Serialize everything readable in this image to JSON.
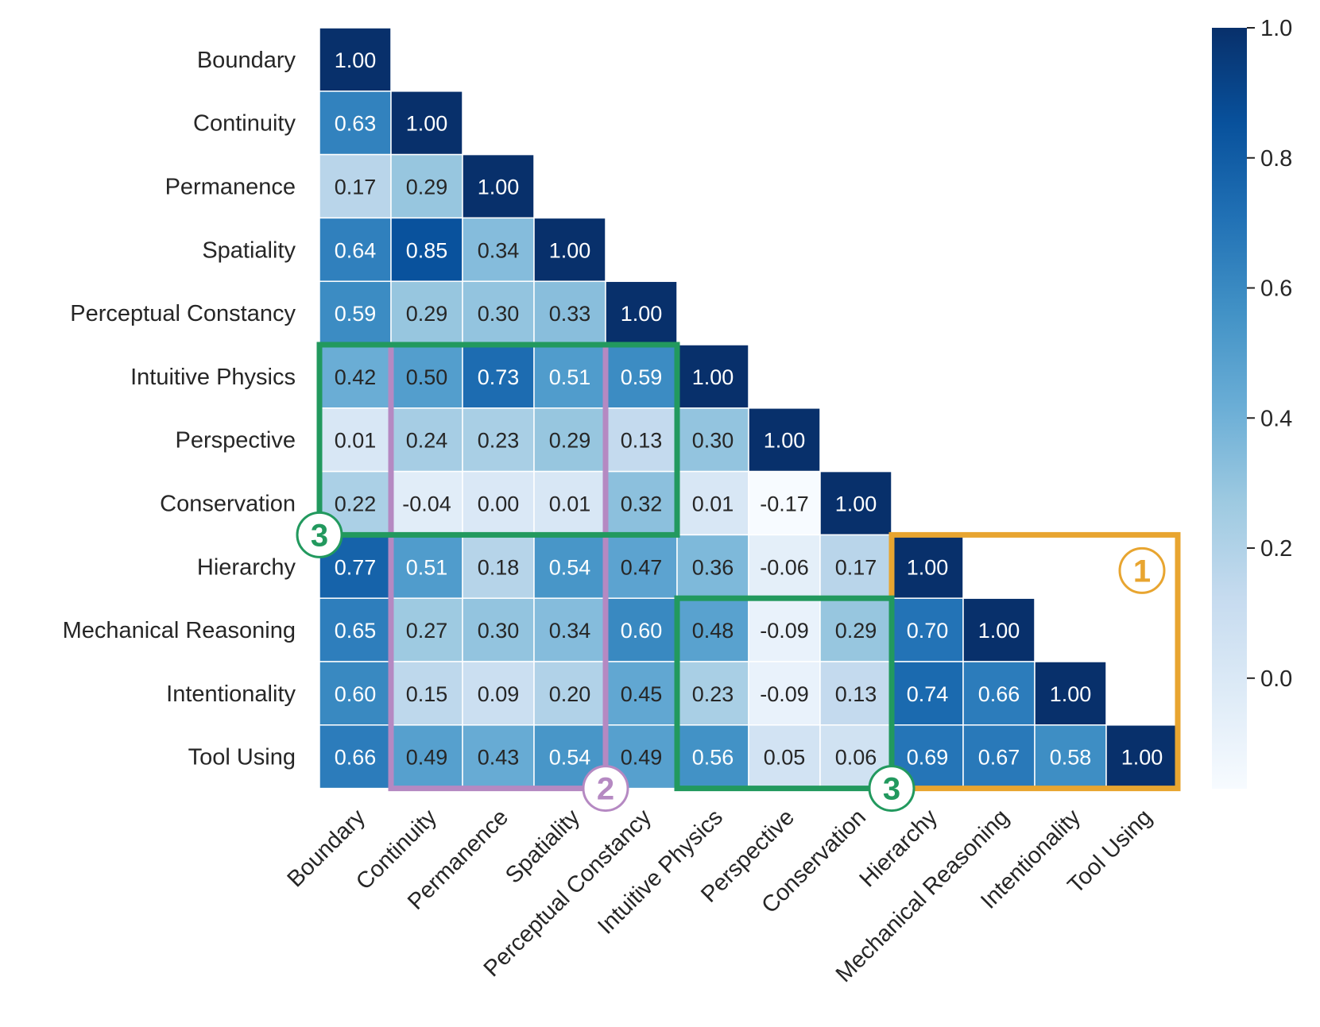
{
  "chart_data": {
    "type": "heatmap",
    "mask": "upper-triangle",
    "categories": [
      "Boundary",
      "Continuity",
      "Permanence",
      "Spatiality",
      "Perceptual Constancy",
      "Intuitive Physics",
      "Perspective",
      "Conservation",
      "Hierarchy",
      "Mechanical Reasoning",
      "Intentionality",
      "Tool Using"
    ],
    "values": [
      [
        1.0
      ],
      [
        0.63,
        1.0
      ],
      [
        0.17,
        0.29,
        1.0
      ],
      [
        0.64,
        0.85,
        0.34,
        1.0
      ],
      [
        0.59,
        0.29,
        0.3,
        0.33,
        1.0
      ],
      [
        0.42,
        0.5,
        0.73,
        0.51,
        0.59,
        1.0
      ],
      [
        0.01,
        0.24,
        0.23,
        0.29,
        0.13,
        0.3,
        1.0
      ],
      [
        0.22,
        -0.04,
        -0.0,
        0.01,
        0.32,
        0.01,
        -0.17,
        1.0
      ],
      [
        0.77,
        0.51,
        0.18,
        0.54,
        0.47,
        0.36,
        -0.06,
        0.17,
        1.0
      ],
      [
        0.65,
        0.27,
        0.3,
        0.34,
        0.6,
        0.48,
        -0.09,
        0.29,
        0.7,
        1.0
      ],
      [
        0.6,
        0.15,
        0.09,
        0.2,
        0.45,
        0.23,
        -0.09,
        0.13,
        0.74,
        0.66,
        1.0
      ],
      [
        0.66,
        0.49,
        0.43,
        0.54,
        0.49,
        0.56,
        0.05,
        0.06,
        0.69,
        0.67,
        0.58,
        1.0
      ]
    ],
    "colormap": "Blues",
    "colorbar": {
      "range": [
        -0.17,
        1.0
      ],
      "ticks": [
        0.0,
        0.2,
        0.4,
        0.6,
        0.8,
        1.0
      ],
      "tick_labels": [
        "0.0",
        "0.2",
        "0.4",
        "0.6",
        "0.8",
        "1.0"
      ]
    },
    "annotations": [
      {
        "label": "①",
        "color": "#e8a530",
        "rows": [
          8,
          11
        ],
        "cols": [
          8,
          11
        ],
        "label_at": "inside-top-right"
      },
      {
        "label": "②",
        "color": "#b589c2",
        "rows": [
          5,
          11
        ],
        "cols": [
          1,
          3
        ],
        "label_at": "bottom-right"
      },
      {
        "label": "③",
        "color": "#22995e",
        "rows": [
          5,
          7
        ],
        "cols": [
          0,
          4
        ],
        "label_at": "bottom-left"
      },
      {
        "label": "③",
        "color": "#22995e",
        "rows": [
          9,
          11
        ],
        "cols": [
          5,
          7
        ],
        "label_at": "bottom-right"
      }
    ]
  }
}
